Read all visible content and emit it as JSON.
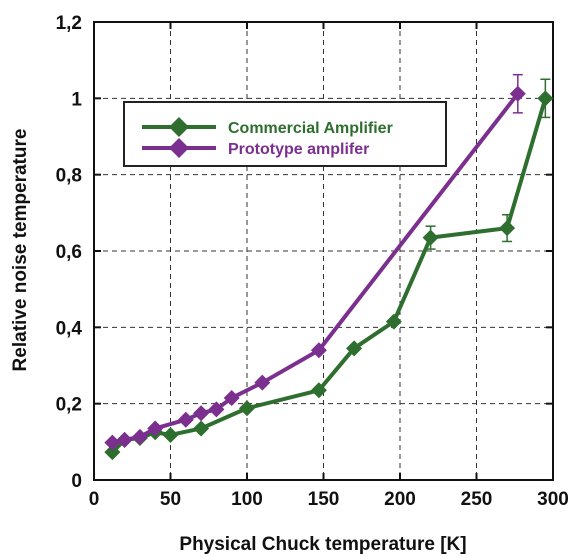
{
  "chart_data": {
    "type": "line",
    "xlabel": "Physical Chuck temperature [K]",
    "ylabel": "Relative noise temperature",
    "xlim": [
      0,
      300
    ],
    "ylim": [
      0,
      1.2
    ],
    "x_ticks": [
      0,
      50,
      100,
      150,
      200,
      250,
      300
    ],
    "x_tick_labels": [
      "0",
      "50",
      "100",
      "150",
      "200",
      "250",
      "300"
    ],
    "y_ticks": [
      0,
      0.2,
      0.4,
      0.6,
      0.8,
      1.0,
      1.2
    ],
    "y_tick_labels": [
      "0",
      "0,2",
      "0,4",
      "0,6",
      "0,8",
      "1",
      "1,2"
    ],
    "grid": true,
    "legend_position": "top-left",
    "series": [
      {
        "name": "Commercial Amplifier",
        "color": "#2e6e2e",
        "marker": "diamond",
        "points": [
          [
            12,
            0.073
          ],
          [
            20,
            0.105
          ],
          [
            30,
            0.11
          ],
          [
            40,
            0.125
          ],
          [
            50,
            0.118
          ],
          [
            70,
            0.135
          ],
          [
            100,
            0.188
          ],
          [
            147,
            0.235
          ],
          [
            170,
            0.345
          ],
          [
            196,
            0.415
          ],
          [
            220,
            0.635
          ],
          [
            270,
            0.66
          ],
          [
            295,
            1.0
          ]
        ],
        "error_bars": [
          [
            220,
            0.03
          ],
          [
            270,
            0.035
          ],
          [
            295,
            0.05
          ]
        ]
      },
      {
        "name": "Prototype amplifer",
        "color": "#7b2f8e",
        "marker": "diamond",
        "points": [
          [
            12,
            0.098
          ],
          [
            20,
            0.105
          ],
          [
            30,
            0.113
          ],
          [
            40,
            0.135
          ],
          [
            60,
            0.158
          ],
          [
            70,
            0.175
          ],
          [
            80,
            0.185
          ],
          [
            90,
            0.215
          ],
          [
            110,
            0.255
          ],
          [
            147,
            0.34
          ],
          [
            277,
            1.012
          ]
        ],
        "error_bars": [
          [
            277,
            0.05
          ]
        ]
      }
    ]
  }
}
